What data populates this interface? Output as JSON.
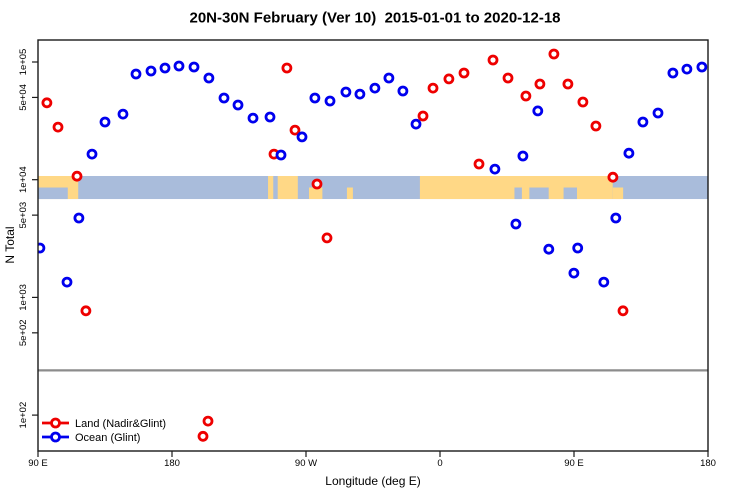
{
  "title": "20N-30N February (Ver 10)  2015-01-01 to 2020-12-18",
  "axes": {
    "y": {
      "label": "N Total",
      "scale": "log",
      "ticks": [
        {
          "label": "1e+05",
          "value": 100000
        },
        {
          "label": "5e+04",
          "value": 50000
        },
        {
          "label": "1e+04",
          "value": 10000
        },
        {
          "label": "5e+03",
          "value": 5000
        },
        {
          "label": "1e+03",
          "value": 1000
        },
        {
          "label": "5e+02",
          "value": 500
        },
        {
          "label": "1e+02",
          "value": 100
        }
      ]
    },
    "x": {
      "label": "Longitude (deg E)",
      "note": "axis spans 450 deg: 90E -> 180 -> 90W -> 0 -> 90E -> 180 (lon stored as 90..540)",
      "ticks": [
        {
          "label": "90 E",
          "lon": 90
        },
        {
          "label": "180",
          "lon": 180
        },
        {
          "label": "90 W",
          "lon": 270
        },
        {
          "label": "0",
          "lon": 360
        },
        {
          "label": "90 E",
          "lon": 450
        },
        {
          "label": "180",
          "lon": 540
        }
      ]
    }
  },
  "legend": {
    "items": [
      {
        "label": "Land (Nadir&Glint)",
        "color": "#ee0000"
      },
      {
        "label": "Ocean (Glint)",
        "color": "#0000ee"
      }
    ]
  },
  "colors": {
    "land_series": "#ee0000",
    "ocean_series": "#0000ee",
    "map_land": "#ffd886",
    "map_ocean": "#a9bcdb",
    "reference_line": "#8c8c8c",
    "frame": "#1a1a1a"
  },
  "chart_data": {
    "type": "scatter",
    "title": "20N-30N February (Ver 10)  2015-01-01 to 2020-12-18",
    "xlabel": "Longitude (deg E)",
    "ylabel": "N Total",
    "x_range_lon": [
      90,
      540
    ],
    "y_log_range": [
      50,
      160000
    ],
    "reference_line_n": 240,
    "map_band": {
      "description": "world land/ocean strip for 20N-30N drawn across the plot",
      "from_n": 10750,
      "to_n": 6850,
      "land_segments": [
        {
          "from": 90,
          "to": 117,
          "part": "full"
        },
        {
          "from": 244.5,
          "to": 248,
          "part": "full"
        },
        {
          "from": 251,
          "to": 264.5,
          "part": "full"
        },
        {
          "from": 272,
          "to": 281,
          "part": "lower"
        },
        {
          "from": 297.5,
          "to": 301.5,
          "part": "lower"
        },
        {
          "from": 346.5,
          "to": 476,
          "part": "full"
        },
        {
          "from": 476,
          "to": 483,
          "part": "lower"
        }
      ],
      "ocean_notches": [
        {
          "from": 90,
          "to": 110,
          "part": "lower"
        },
        {
          "from": 410,
          "to": 415,
          "part": "lower"
        },
        {
          "from": 420,
          "to": 433,
          "part": "lower"
        },
        {
          "from": 443,
          "to": 452,
          "part": "lower"
        }
      ]
    },
    "series": [
      {
        "name": "Land (Nadir&Glint)",
        "color": "#ee0000",
        "points": [
          {
            "lon": 96.0,
            "n": 45000
          },
          {
            "lon": 103.4,
            "n": 28000
          },
          {
            "lon": 116.2,
            "n": 10700
          },
          {
            "lon": 122.2,
            "n": 770
          },
          {
            "lon": 200.8,
            "n": 66
          },
          {
            "lon": 204.2,
            "n": 89
          },
          {
            "lon": 248.5,
            "n": 16500
          },
          {
            "lon": 257.2,
            "n": 89000
          },
          {
            "lon": 262.6,
            "n": 26400
          },
          {
            "lon": 277.4,
            "n": 9200
          },
          {
            "lon": 284.1,
            "n": 3200
          },
          {
            "lon": 348.6,
            "n": 34800
          },
          {
            "lon": 355.3,
            "n": 60000
          },
          {
            "lon": 366.0,
            "n": 71800
          },
          {
            "lon": 376.1,
            "n": 80700
          },
          {
            "lon": 386.2,
            "n": 13600
          },
          {
            "lon": 395.6,
            "n": 104000
          },
          {
            "lon": 405.7,
            "n": 73100
          },
          {
            "lon": 417.7,
            "n": 51400
          },
          {
            "lon": 427.1,
            "n": 65000
          },
          {
            "lon": 436.5,
            "n": 117000
          },
          {
            "lon": 445.9,
            "n": 65000
          },
          {
            "lon": 456.0,
            "n": 45700
          },
          {
            "lon": 464.7,
            "n": 28600
          },
          {
            "lon": 476.1,
            "n": 10500
          },
          {
            "lon": 482.9,
            "n": 770
          }
        ]
      },
      {
        "name": "Ocean (Glint)",
        "color": "#0000ee",
        "points": [
          {
            "lon": 91.3,
            "n": 2630
          },
          {
            "lon": 109.5,
            "n": 1350
          },
          {
            "lon": 117.5,
            "n": 4730
          },
          {
            "lon": 126.3,
            "n": 16500
          },
          {
            "lon": 135.0,
            "n": 30900
          },
          {
            "lon": 147.1,
            "n": 36100
          },
          {
            "lon": 155.8,
            "n": 79000
          },
          {
            "lon": 165.9,
            "n": 83800
          },
          {
            "lon": 175.3,
            "n": 88900
          },
          {
            "lon": 184.7,
            "n": 92400
          },
          {
            "lon": 194.8,
            "n": 90600
          },
          {
            "lon": 204.8,
            "n": 73100
          },
          {
            "lon": 214.9,
            "n": 49400
          },
          {
            "lon": 224.3,
            "n": 43100
          },
          {
            "lon": 234.4,
            "n": 33400
          },
          {
            "lon": 245.8,
            "n": 34100
          },
          {
            "lon": 253.2,
            "n": 16200
          },
          {
            "lon": 267.3,
            "n": 23100
          },
          {
            "lon": 276.0,
            "n": 49400
          },
          {
            "lon": 286.1,
            "n": 46600
          },
          {
            "lon": 296.8,
            "n": 55600
          },
          {
            "lon": 306.2,
            "n": 53400
          },
          {
            "lon": 316.3,
            "n": 60000
          },
          {
            "lon": 325.7,
            "n": 73100
          },
          {
            "lon": 335.1,
            "n": 56700
          },
          {
            "lon": 343.9,
            "n": 29700
          },
          {
            "lon": 396.9,
            "n": 12300
          },
          {
            "lon": 411.0,
            "n": 4200
          },
          {
            "lon": 415.7,
            "n": 15900
          },
          {
            "lon": 425.7,
            "n": 38400
          },
          {
            "lon": 433.1,
            "n": 2570
          },
          {
            "lon": 449.9,
            "n": 1610
          },
          {
            "lon": 452.5,
            "n": 2630
          },
          {
            "lon": 470.0,
            "n": 1350
          },
          {
            "lon": 478.1,
            "n": 4730
          },
          {
            "lon": 486.9,
            "n": 16800
          },
          {
            "lon": 496.3,
            "n": 30900
          },
          {
            "lon": 506.4,
            "n": 36900
          },
          {
            "lon": 516.4,
            "n": 80700
          },
          {
            "lon": 525.8,
            "n": 87100
          },
          {
            "lon": 535.9,
            "n": 90600
          }
        ]
      }
    ]
  }
}
